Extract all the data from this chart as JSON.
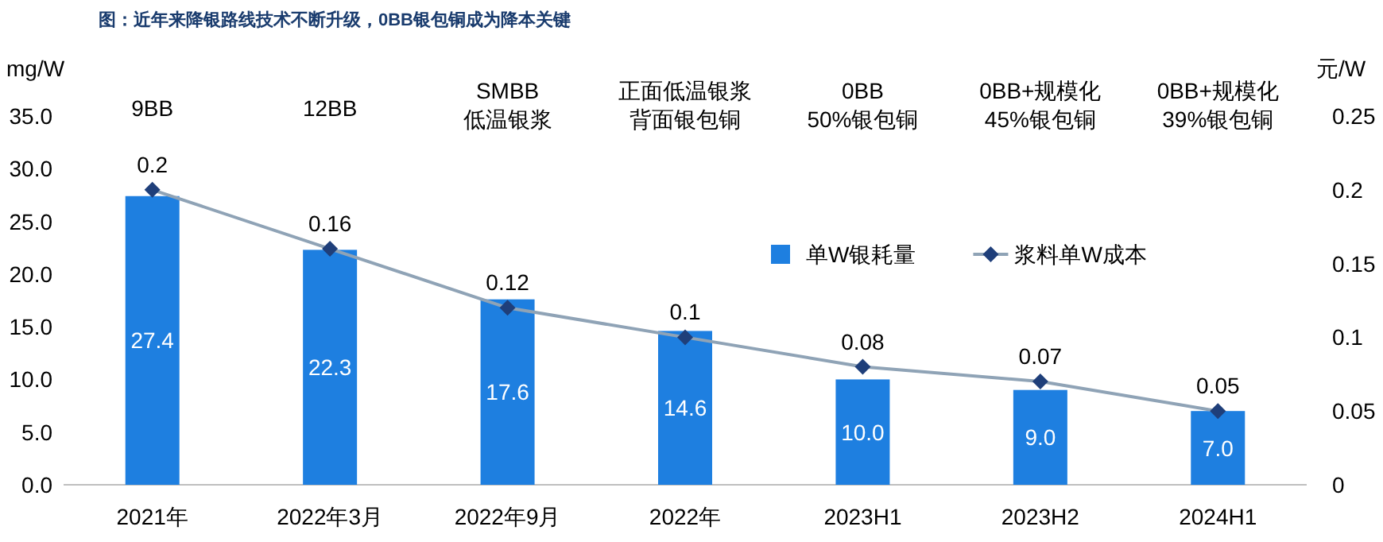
{
  "chart_data": {
    "type": "bar",
    "title": "图：近年来降银路线技术不断升级，0BB银包铜成为降本关键",
    "categories": [
      "2021年",
      "2022年3月",
      "2022年9月",
      "2022年",
      "2023H1",
      "2023H2",
      "2024H1"
    ],
    "series": [
      {
        "name": "单W银耗量",
        "color": "#1e7fe0",
        "values": [
          27.4,
          22.3,
          17.6,
          14.6,
          10.0,
          9.0,
          7.0
        ],
        "value_labels": [
          "27.4",
          "22.3",
          "17.6",
          "14.6",
          "10.0",
          "9.0",
          "7.0"
        ]
      },
      {
        "name": "浆料单W成本",
        "type": "line",
        "axis": "y2",
        "color": "#8fa3b6",
        "marker": "diamond",
        "values": [
          0.2,
          0.16,
          0.12,
          0.1,
          0.08,
          0.07,
          0.05
        ]
      }
    ],
    "ylabel": "mg/W",
    "y2label": "元/W",
    "ylim": [
      0,
      35
    ],
    "yticks": [
      {
        "value": 0,
        "label": "0.0"
      },
      {
        "value": 5,
        "label": "5.0"
      },
      {
        "value": 10,
        "label": "10.0"
      },
      {
        "value": 15,
        "label": "15.0"
      },
      {
        "value": 20,
        "label": "20.0"
      },
      {
        "value": 25,
        "label": "25.0"
      },
      {
        "value": 30,
        "label": "30.0"
      },
      {
        "value": 35,
        "label": "35.0"
      }
    ],
    "y2lim": [
      0,
      0.25
    ],
    "y2ticks": [
      0,
      0.05,
      0.1,
      0.15,
      0.2,
      0.25
    ],
    "annotations": [
      "9BB",
      "12BB",
      "SMBB低温银浆",
      "正面低温银浆背面银包铜",
      "0BB50%银包铜",
      "0BB+规模化45%银包铜",
      "0BB+规模化39%银包铜"
    ],
    "data_labels": true,
    "legend": "right",
    "grid": false
  }
}
